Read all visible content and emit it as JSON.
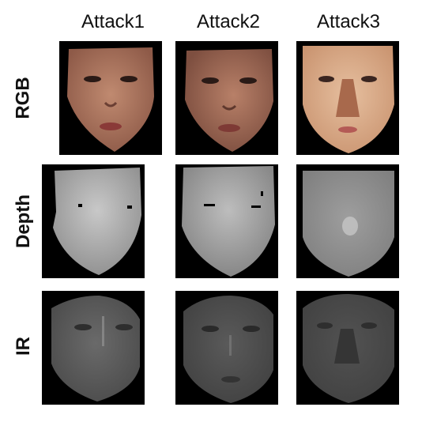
{
  "columns": [
    "Attack1",
    "Attack2",
    "Attack3"
  ],
  "rows": [
    "RGB",
    "Depth",
    "IR"
  ],
  "colors": {
    "background": "#ffffff",
    "tile_background": "#000000",
    "rgb_skin_1": "#a8705a",
    "rgb_skin_2": "#9a6a55",
    "rgb_skin_3": "#d9ad8c",
    "depth_gray_1": "#b4b4b4",
    "depth_gray_2": "#aaaaaa",
    "depth_gray_3": "#8f8f8f",
    "ir_gray_1": "#5a5a5a",
    "ir_gray_2": "#4e4e4e",
    "ir_gray_3": "#4a4a4a"
  }
}
